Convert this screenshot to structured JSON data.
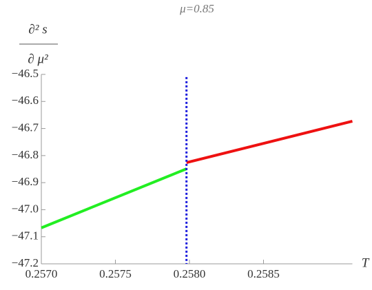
{
  "chart_data": {
    "type": "line",
    "title": "μ=0.85",
    "x_label": "T",
    "y_label": {
      "numerator": "∂² s",
      "denominator": "∂ μ²"
    },
    "xlim": [
      0.257,
      0.2591
    ],
    "ylim": [
      -47.2,
      -46.5
    ],
    "xticks": [
      {
        "value": 0.257,
        "label": "0.2570"
      },
      {
        "value": 0.2575,
        "label": "0.2575"
      },
      {
        "value": 0.258,
        "label": "0.2580"
      },
      {
        "value": 0.2585,
        "label": "0.2585"
      }
    ],
    "yticks": [
      {
        "value": -47.2,
        "label": "−47.2"
      },
      {
        "value": -47.1,
        "label": "−47.1"
      },
      {
        "value": -47.0,
        "label": "−47.0"
      },
      {
        "value": -46.9,
        "label": "−46.9"
      },
      {
        "value": -46.8,
        "label": "−46.8"
      },
      {
        "value": -46.7,
        "label": "−46.7"
      },
      {
        "value": -46.6,
        "label": "−46.6"
      },
      {
        "value": -46.5,
        "label": "−46.5"
      }
    ],
    "series": [
      {
        "color": "#22ee22",
        "x": [
          0.257,
          0.25798
        ],
        "values": [
          -47.067,
          -46.849
        ],
        "dash": false
      },
      {
        "color": "#ee1111",
        "x": [
          0.25798,
          0.2591
        ],
        "values": [
          -46.826,
          -46.673
        ],
        "dash": false
      },
      {
        "color": "#1a1add",
        "x": [
          0.25798,
          0.25798
        ],
        "values": [
          -46.51,
          -47.2
        ],
        "dash": true
      }
    ]
  }
}
